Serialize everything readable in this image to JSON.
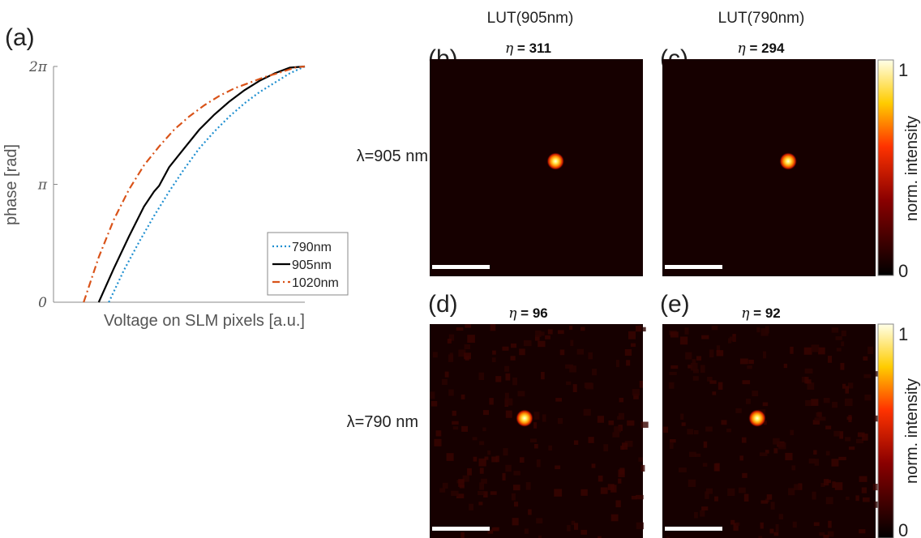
{
  "panel_labels": {
    "a": "(a)",
    "b": "(b)",
    "c": "(c)",
    "d": "(d)",
    "e": "(e)"
  },
  "column_headers": [
    "LUT(905nm)",
    "LUT(790nm)"
  ],
  "row_labels": [
    "λ=905 nm",
    "λ=790 nm"
  ],
  "colorbar": {
    "label": "norm. intensity",
    "ticks": [
      "1",
      "0"
    ],
    "colormap": "hot"
  },
  "chart_data": [
    {
      "type": "line",
      "panel": "(a)",
      "xlabel": "Voltage on SLM pixels [a.u.]",
      "ylabel": "phase [rad]",
      "yticks": [
        "0",
        "π",
        "2π"
      ],
      "ylim": [
        0,
        6.2832
      ],
      "xlim": [
        0,
        1
      ],
      "grid": false,
      "legend_position": "bottom-right",
      "series": [
        {
          "name": "790nm",
          "color": "#1f8fd0",
          "dash": "dotted",
          "x": [
            0.22,
            0.28,
            0.34,
            0.4,
            0.46,
            0.52,
            0.58,
            0.64,
            0.7,
            0.76,
            0.82,
            0.88,
            0.94,
            1.0
          ],
          "y": [
            0.0,
            0.85,
            1.6,
            2.3,
            2.95,
            3.55,
            4.1,
            4.55,
            4.95,
            5.3,
            5.6,
            5.85,
            6.1,
            6.2832
          ]
        },
        {
          "name": "905nm",
          "color": "#000000",
          "dash": "solid",
          "x": [
            0.18,
            0.24,
            0.3,
            0.36,
            0.4,
            0.42,
            0.46,
            0.52,
            0.58,
            0.64,
            0.7,
            0.76,
            0.82,
            0.88,
            0.94,
            1.0
          ],
          "y": [
            0.0,
            0.9,
            1.75,
            2.55,
            2.95,
            3.1,
            3.6,
            4.1,
            4.6,
            5.0,
            5.35,
            5.65,
            5.9,
            6.1,
            6.25,
            6.2832
          ]
        },
        {
          "name": "1020nm",
          "color": "#d95319",
          "dash": "dashdot",
          "x": [
            0.12,
            0.18,
            0.24,
            0.3,
            0.36,
            0.42,
            0.48,
            0.54,
            0.6,
            0.66,
            0.72,
            0.78,
            0.84,
            0.9,
            0.96,
            1.0
          ],
          "y": [
            0.0,
            1.2,
            2.2,
            3.0,
            3.65,
            4.15,
            4.6,
            4.95,
            5.25,
            5.5,
            5.7,
            5.85,
            6.0,
            6.12,
            6.25,
            6.2832
          ]
        }
      ]
    },
    {
      "type": "heatmap",
      "panel": "(b)",
      "title_value": "311",
      "spot": [
        0.59,
        0.47
      ],
      "colormap": "hot",
      "scale_bar": true
    },
    {
      "type": "heatmap",
      "panel": "(c)",
      "title_value": "294",
      "spot": [
        0.59,
        0.47
      ],
      "colormap": "hot",
      "scale_bar": true
    },
    {
      "type": "heatmap",
      "panel": "(d)",
      "title_value": "96",
      "spot": [
        0.445,
        0.44
      ],
      "colormap": "hot",
      "scale_bar": true,
      "speckle": true
    },
    {
      "type": "heatmap",
      "panel": "(e)",
      "title_value": "92",
      "spot": [
        0.445,
        0.44
      ],
      "colormap": "hot",
      "scale_bar": true,
      "speckle": true
    }
  ]
}
